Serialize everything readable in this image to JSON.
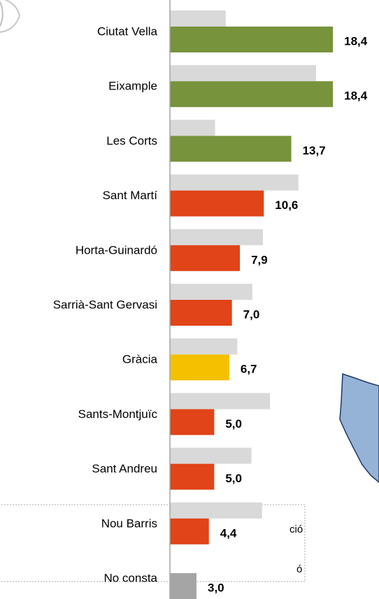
{
  "chart_data": {
    "type": "barh",
    "categories": [
      "Ciutat Vella",
      "Eixample",
      "Les Corts",
      "Sant Martí",
      "Horta-Guinardó",
      "Sarrià-Sant Gervasi",
      "Gràcia",
      "Sants-Montjuïc",
      "Sant Andreu",
      "Nou Barris",
      "No consta"
    ],
    "series": [
      {
        "color": "#d9d9d9",
        "values": [
          6.3,
          16.5,
          5.1,
          14.5,
          10.5,
          9.3,
          7.6,
          11.3,
          9.2,
          10.4,
          null
        ]
      },
      {
        "colors": [
          "#77933c",
          "#77933c",
          "#77933c",
          "#e04418",
          "#e04418",
          "#e04418",
          "#f5c000",
          "#e04418",
          "#e04418",
          "#e04418",
          "#a5a5a5"
        ],
        "values": [
          18.4,
          18.4,
          13.7,
          10.6,
          7.9,
          7.0,
          6.7,
          5.0,
          5.0,
          4.4,
          3.0
        ],
        "value_labels": [
          "18,4",
          "18,4",
          "13,7",
          "10,6",
          "7,9",
          "7,0",
          "6,7",
          "5,0",
          "5,0",
          "4,4",
          "3,0"
        ]
      }
    ],
    "xlim": [
      0,
      23.6
    ],
    "legend_fragments": [
      "ció",
      "ó"
    ]
  }
}
